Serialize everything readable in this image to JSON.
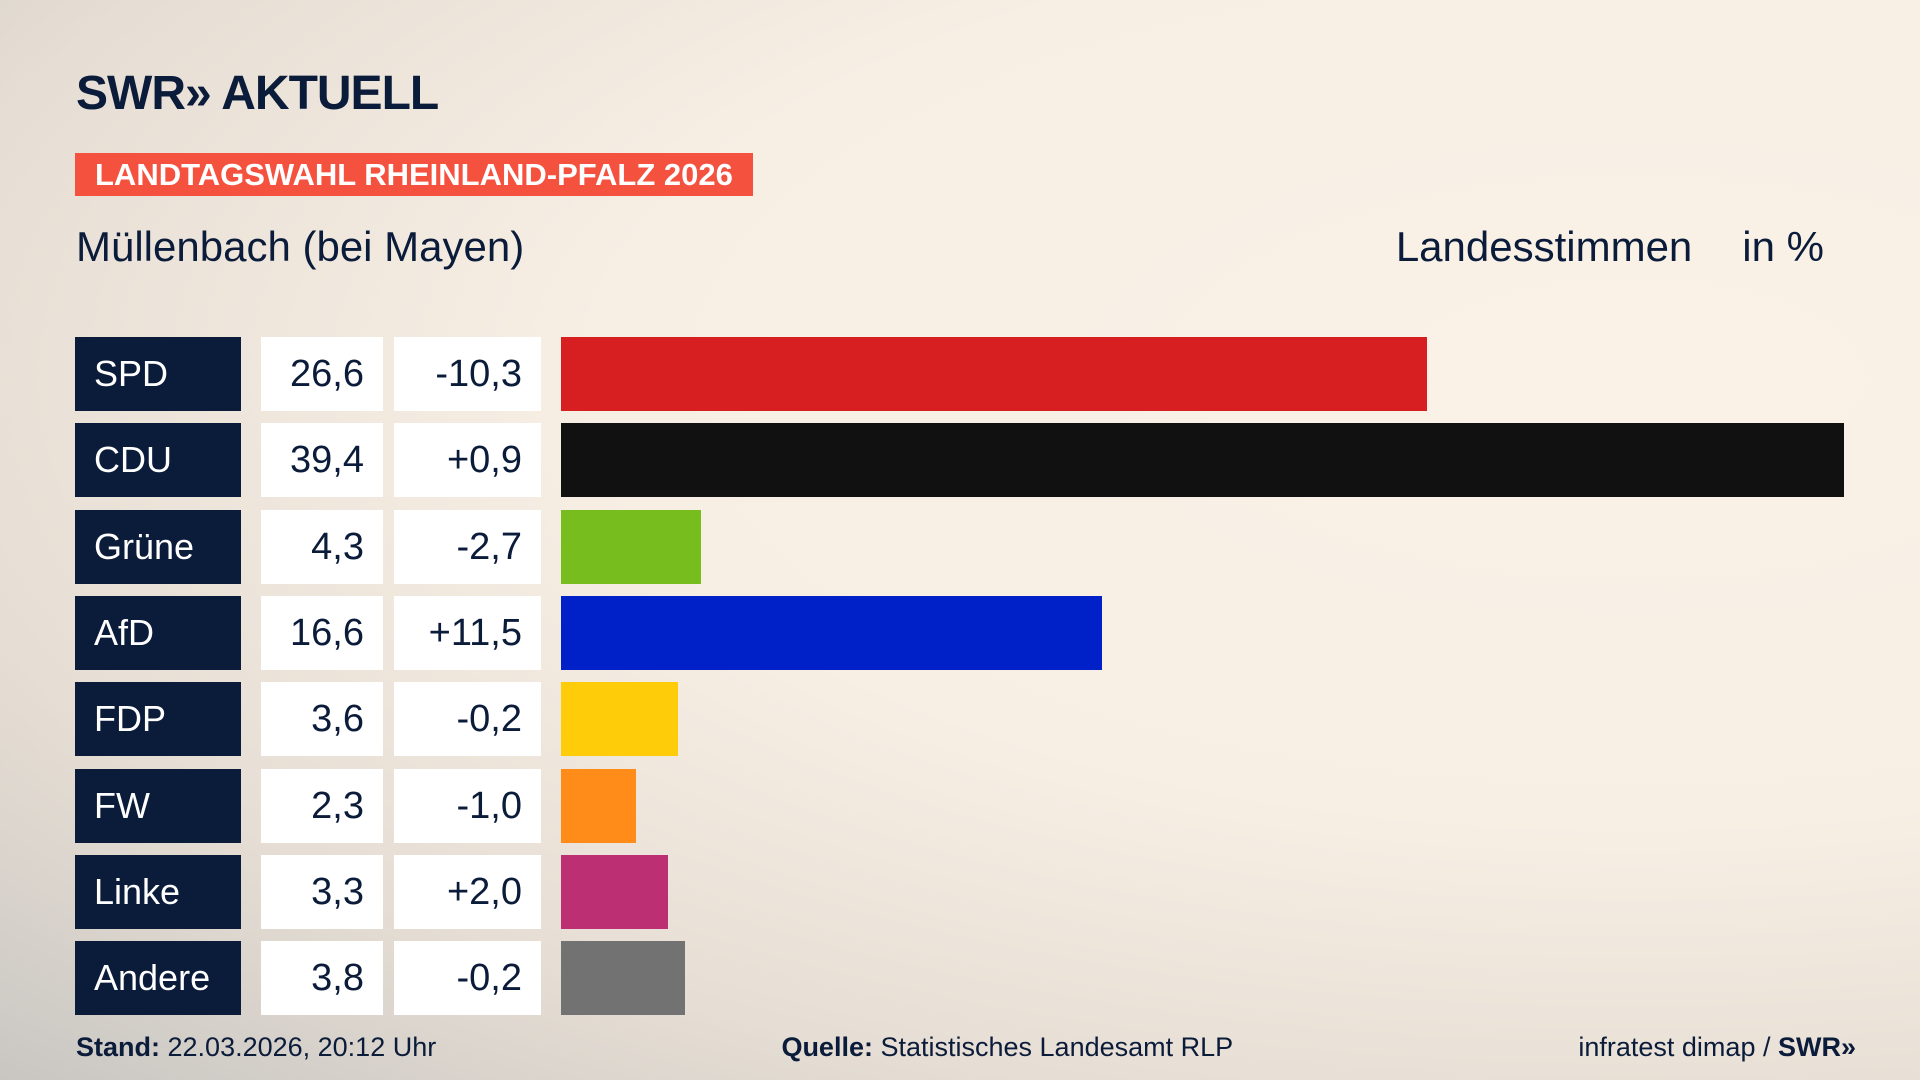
{
  "header": {
    "logo": "SWR» AKTUELL",
    "banner": "LANDTAGSWAHL RHEINLAND-PFALZ 2026",
    "place": "Müllenbach (bei Mayen)",
    "measure": "Landesstimmen",
    "unit": "in %"
  },
  "chart_data": {
    "type": "bar",
    "orientation": "horizontal",
    "categories": [
      "SPD",
      "CDU",
      "Grüne",
      "AfD",
      "FDP",
      "FW",
      "Linke",
      "Andere"
    ],
    "values": [
      26.6,
      39.4,
      4.3,
      16.6,
      3.6,
      2.3,
      3.3,
      3.8
    ],
    "value_labels": [
      "26,6",
      "39,4",
      "4,3",
      "16,6",
      "3,6",
      "2,3",
      "3,3",
      "3,8"
    ],
    "diff": [
      -10.3,
      0.9,
      -2.7,
      11.5,
      -0.2,
      -1.0,
      2.0,
      -0.2
    ],
    "diff_labels": [
      "-10,3",
      "+0,9",
      "-2,7",
      "+11,5",
      "-0,2",
      "-1,0",
      "+2,0",
      "-0,2"
    ],
    "colors": [
      "#d71f21",
      "#111111",
      "#78bd1e",
      "#0021c8",
      "#ffcc0a",
      "#ff8c19",
      "#bc2f72",
      "#727272"
    ],
    "xlim": [
      0,
      39.4
    ],
    "grid": false
  },
  "footer": {
    "stand_label": "Stand:",
    "stand": "22.03.2026, 20:12 Uhr",
    "source_label": "Quelle:",
    "source": "Statistisches Landesamt RLP",
    "credit": "infratest dimap /",
    "credit_logo": "SWR»"
  }
}
